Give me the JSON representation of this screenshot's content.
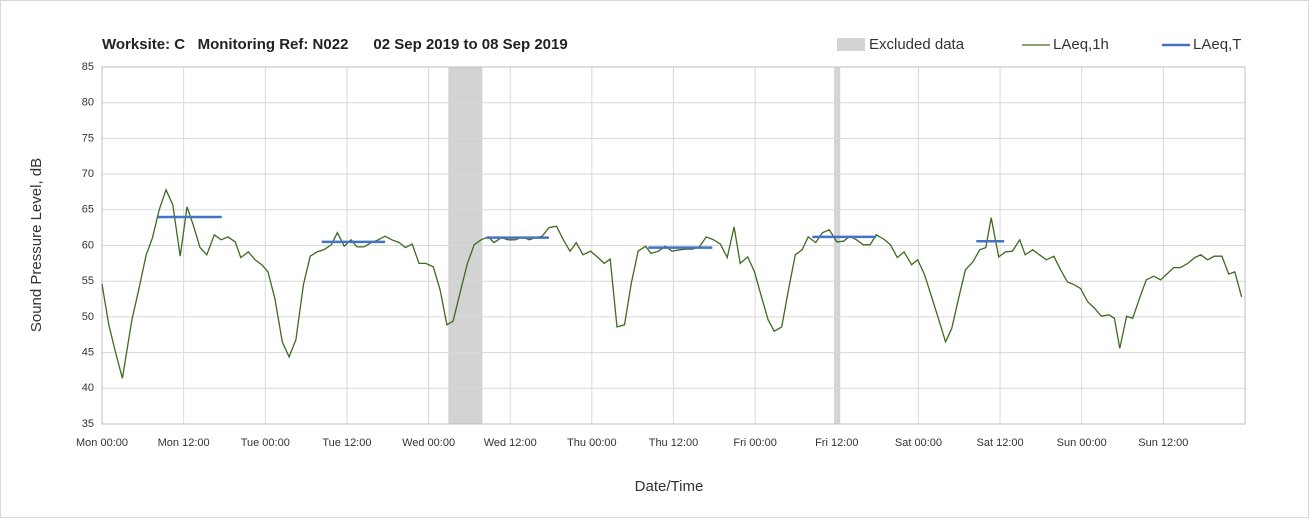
{
  "chart_data": {
    "type": "line",
    "title": "Worksite: C   Monitoring Ref: N022      02 Sep 2019 to 08 Sep 2019",
    "x_label": "Date/Time",
    "y_label": "Sound Pressure Level, dB",
    "xlim": [
      0,
      168
    ],
    "xticks": [
      {
        "value": 0,
        "label": "Mon 00:00"
      },
      {
        "value": 12,
        "label": "Mon 12:00"
      },
      {
        "value": 24,
        "label": "Tue 00:00"
      },
      {
        "value": 36,
        "label": "Tue 12:00"
      },
      {
        "value": 48,
        "label": "Wed 00:00"
      },
      {
        "value": 60,
        "label": "Wed 12:00"
      },
      {
        "value": 72,
        "label": "Thu 00:00"
      },
      {
        "value": 84,
        "label": "Thu 12:00"
      },
      {
        "value": 96,
        "label": "Fri 00:00"
      },
      {
        "value": 108,
        "label": "Fri 12:00"
      },
      {
        "value": 120,
        "label": "Sat 00:00"
      },
      {
        "value": 132,
        "label": "Sat 12:00"
      },
      {
        "value": 144,
        "label": "Sun 00:00"
      },
      {
        "value": 156,
        "label": "Sun 12:00"
      }
    ],
    "ylim": [
      35,
      85
    ],
    "yticks": [
      35,
      40,
      45,
      50,
      55,
      60,
      65,
      70,
      75,
      80,
      85
    ],
    "grid": true,
    "excluded": {
      "name": "Excluded data",
      "color": "#d3d3d3",
      "ranges": [
        [
          50.9,
          55.9
        ],
        [
          107.6,
          108.5
        ]
      ]
    },
    "series": [
      {
        "name": "LAeq,1h",
        "color": "#3d6b1f",
        "x": [
          0,
          1,
          2,
          3,
          4.4,
          5.4,
          6.5,
          7.4,
          8.4,
          9.4,
          10.4,
          11.5,
          12.5,
          13.4,
          14.4,
          15.4,
          16.5,
          17.5,
          18.5,
          19.6,
          20.4,
          21.5,
          22.5,
          23.5,
          24.4,
          25.4,
          26.5,
          27.5,
          28.5,
          29.6,
          30.6,
          31.6,
          32.6,
          33.7,
          34.6,
          35.6,
          36.6,
          37.5,
          38.5,
          39.6,
          40.6,
          41.6,
          42.6,
          43.7,
          44.6,
          45.6,
          46.6,
          47.6,
          48.7,
          49.7,
          50.7,
          51.6,
          52.6,
          53.7,
          54.7,
          55.7,
          56.8,
          57.6,
          58.7,
          59.7,
          60.7,
          61.8,
          62.8,
          63.7,
          64.7,
          65.7,
          66.8,
          67.8,
          68.8,
          69.7,
          70.7,
          71.8,
          72.8,
          73.8,
          74.7,
          75.7,
          76.8,
          77.8,
          78.8,
          79.9,
          80.7,
          81.8,
          82.8,
          83.8,
          84.9,
          85.9,
          86.8,
          87.8,
          88.8,
          89.9,
          90.9,
          91.9,
          92.9,
          93.8,
          94.9,
          95.9,
          96.9,
          97.9,
          98.8,
          99.9,
          100.9,
          101.9,
          102.9,
          103.8,
          104.9,
          105.9,
          106.9,
          108,
          109,
          109.9,
          110.9,
          111.9,
          112.9,
          113.8,
          114.9,
          115.9,
          116.9,
          117.9,
          119,
          119.9,
          120.9,
          121.9,
          123,
          124,
          124.9,
          125.9,
          126.9,
          128,
          129,
          129.9,
          130.7,
          131.8,
          132.8,
          133.8,
          134.9,
          135.7,
          136.8,
          137.8,
          138.8,
          139.9,
          140.9,
          141.9,
          142.9,
          143.8,
          144.9,
          145.9,
          146.9,
          148,
          148.8,
          149.6,
          150.6,
          151.5,
          152.5,
          153.5,
          154.6,
          155.6,
          156.5,
          157.5,
          158.5,
          159.6,
          160.6,
          161.5,
          162.5,
          163.5,
          164.6,
          165.6,
          166.5,
          167.5
        ],
        "values": [
          54.6,
          48.9,
          45,
          41.4,
          49.6,
          53.8,
          58.7,
          61,
          65,
          67.8,
          65.7,
          58.5,
          65.4,
          62.9,
          59.7,
          58.7,
          61.5,
          60.8,
          61.2,
          60.5,
          58.3,
          59.1,
          58,
          57.3,
          56.3,
          52.6,
          46.5,
          44.4,
          46.8,
          54.5,
          58.5,
          59.1,
          59.4,
          60.1,
          61.8,
          59.9,
          60.8,
          59.8,
          59.8,
          60.4,
          60.8,
          61.3,
          60.8,
          60.4,
          59.7,
          60.2,
          57.5,
          57.5,
          57,
          53.8,
          48.9,
          49.4,
          53.3,
          57.5,
          60.1,
          60.8,
          61.2,
          60.4,
          61.1,
          60.8,
          60.8,
          61.2,
          60.8,
          61.1,
          61.3,
          62.5,
          62.7,
          60.8,
          59.2,
          60.4,
          58.7,
          59.2,
          58.4,
          57.5,
          58.1,
          48.6,
          48.9,
          54.7,
          59.2,
          59.9,
          58.9,
          59.2,
          59.9,
          59.2,
          59.4,
          59.5,
          59.5,
          59.8,
          61.2,
          60.8,
          60.2,
          58.3,
          62.6,
          57.5,
          58.4,
          56.3,
          52.9,
          49.6,
          48,
          48.6,
          53.8,
          58.7,
          59.4,
          61.2,
          60.4,
          61.8,
          62.2,
          60.5,
          60.6,
          61.3,
          60.8,
          60.1,
          60.1,
          61.5,
          60.9,
          60.1,
          58.3,
          59.1,
          57.3,
          58,
          55.9,
          52.9,
          49.6,
          46.5,
          48.4,
          52.6,
          56.6,
          57.7,
          59.4,
          59.7,
          63.9,
          58.4,
          59.1,
          59.2,
          60.8,
          58.7,
          59.4,
          58.7,
          58,
          58.5,
          56.6,
          54.9,
          54.5,
          54,
          52.1,
          51.2,
          50.1,
          50.3,
          49.8,
          45.6,
          50.1,
          49.8,
          52.6,
          55.2,
          55.7,
          55.2,
          56,
          56.9,
          56.9,
          57.5,
          58.3,
          58.7,
          58,
          58.5,
          58.5,
          56,
          56.3,
          52.8
        ]
      },
      {
        "name": "LAeq,T",
        "color": "#4472c4",
        "x": [
          [
            8.2,
            17.6
          ],
          [
            32.3,
            41.6
          ],
          [
            56.5,
            65.7
          ],
          [
            80.3,
            89.7
          ],
          [
            104.4,
            113.8
          ],
          [
            128.5,
            132.6
          ]
        ],
        "values": [
          64.0,
          60.5,
          61.1,
          59.7,
          61.2,
          60.6
        ]
      }
    ]
  }
}
